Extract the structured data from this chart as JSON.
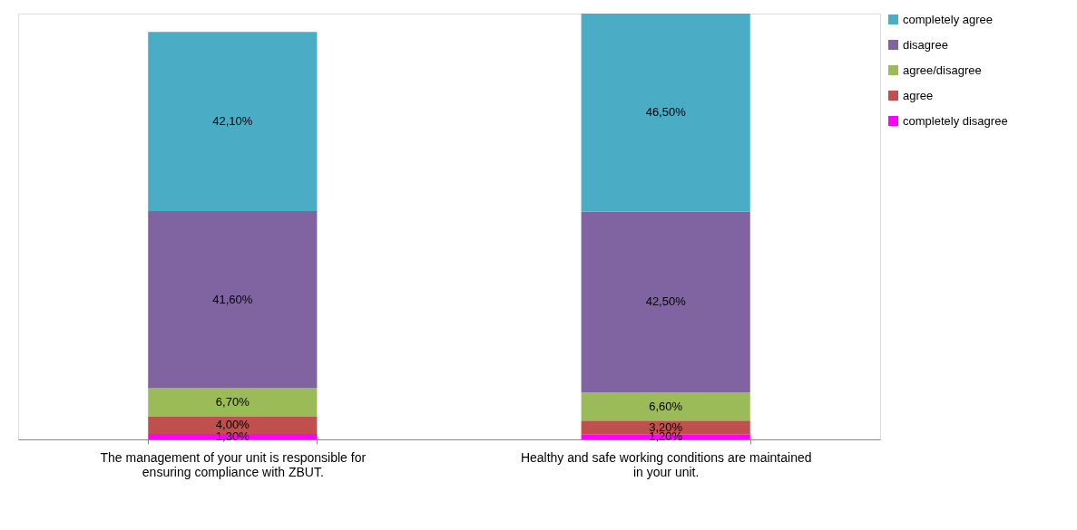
{
  "chart_data": {
    "type": "bar",
    "stacked": true,
    "legend": "right",
    "grid": false,
    "categories": [
      "The management of your unit is responsible for ensuring compliance with ZBUT.",
      "Healthy and safe working conditions are maintained in your unit."
    ],
    "series": [
      {
        "name": "completely disagree",
        "color": "#ff00ff",
        "values": [
          1.3,
          1.2
        ],
        "value_labels": [
          "1,30%",
          "1,20%"
        ]
      },
      {
        "name": "agree",
        "color": "#c0504d",
        "values": [
          4.0,
          3.2
        ],
        "value_labels": [
          "4,00%",
          "3,20%"
        ]
      },
      {
        "name": "agree/disagree",
        "color": "#9bbb59",
        "values": [
          6.7,
          6.6
        ],
        "value_labels": [
          "6,70%",
          "6,60%"
        ]
      },
      {
        "name": "disagree",
        "color": "#8064a2",
        "values": [
          41.6,
          42.5
        ],
        "value_labels": [
          "41,60%",
          "42,50%"
        ]
      },
      {
        "name": "completely agree",
        "color": "#4bacc6",
        "values": [
          42.1,
          46.5
        ],
        "value_labels": [
          "42,10%",
          "46,50%"
        ]
      }
    ]
  }
}
